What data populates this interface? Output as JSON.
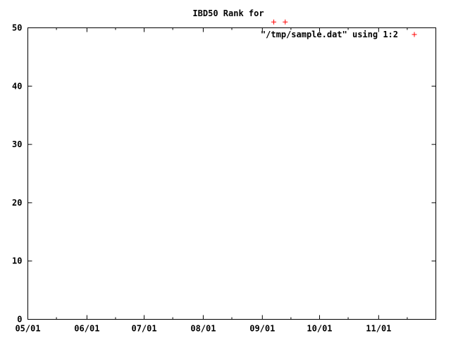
{
  "chart_data": {
    "type": "scatter",
    "title": "IBD50 Rank for",
    "xlabel": "",
    "ylabel": "",
    "x_ticks": [
      "05/01",
      "06/01",
      "07/01",
      "08/01",
      "09/01",
      "10/01",
      "11/01"
    ],
    "x_range": [
      "05/01",
      "12/01"
    ],
    "y_ticks": [
      "0",
      "10",
      "20",
      "30",
      "40",
      "50"
    ],
    "ylim": [
      0,
      50
    ],
    "grid": false,
    "legend_position": "top-right",
    "series": [
      {
        "name": "\"/tmp/sample.dat\" using 1:2",
        "color": "#ff0000",
        "marker": "plus",
        "points": [
          {
            "x": "09/07",
            "y": 51
          },
          {
            "x": "09/13",
            "y": 51
          }
        ]
      }
    ]
  }
}
